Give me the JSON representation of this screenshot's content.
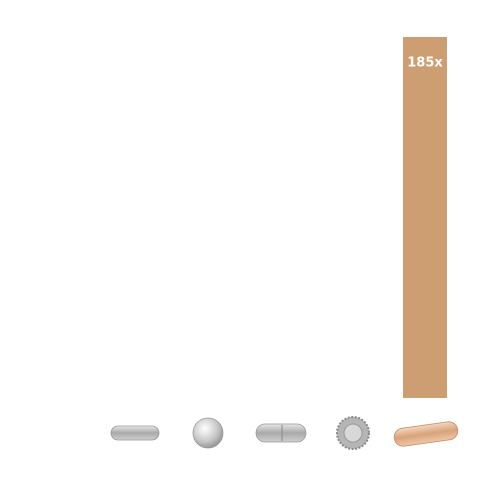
{
  "chart_data": {
    "type": "bar",
    "categories": [
      null,
      null,
      null,
      null,
      null
    ],
    "values": [
      0,
      0,
      0,
      0,
      185
    ],
    "value_labels": [
      null,
      null,
      null,
      null,
      "185x"
    ],
    "color": "#cc9e72"
  }
}
